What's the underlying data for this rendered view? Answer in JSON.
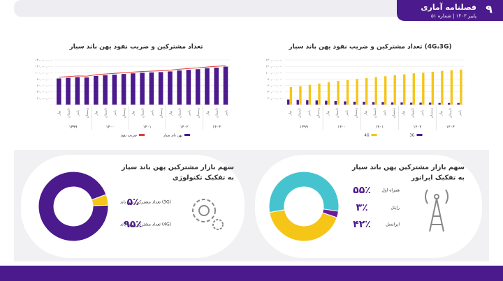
{
  "header": {
    "page_number": "۹",
    "title": "فصلنامه آماری",
    "issue": "پاییز ۱۴۰۳ | شماره ۵۱"
  },
  "chart_data": [
    {
      "type": "bar",
      "title": "تعداد مشترکین و ضریب نفوذ پهن باند سیار",
      "categories": [
        "بهار",
        "تابستان",
        "پاییز",
        "زمستان",
        "بهار",
        "تابستان",
        "پاییز",
        "زمستان",
        "بهار",
        "تابستان",
        "پاییز",
        "زمستان",
        "بهار",
        "تابستان",
        "پاییز",
        "زمستان",
        "بهار",
        "تابستان",
        "پاییز"
      ],
      "years": [
        "۱۳۹۹",
        "۱۴۰۰",
        "۱۴۰۱",
        "۱۴۰۲",
        "۱۴۰۳"
      ],
      "series": [
        {
          "name": "پهن باند سیار",
          "type": "bar",
          "color": "#4b1a8c",
          "values": [
            82000000,
            84000000,
            86000000,
            85000000,
            90000000,
            92000000,
            94000000,
            96000000,
            98000000,
            100000000,
            101000000,
            102000000,
            104000000,
            107000000,
            109000000,
            111000000,
            114000000,
            116000000,
            119000000
          ]
        },
        {
          "name": "ضریب نفوذ",
          "type": "line",
          "color": "#e53935",
          "values": [
            86000000,
            88000000,
            90000000,
            89000000,
            94000000,
            96000000,
            98000000,
            100000000,
            102000000,
            104000000,
            105000000,
            106000000,
            108000000,
            111000000,
            113000000,
            115000000,
            118000000,
            120000000,
            122000000
          ]
        }
      ],
      "ylim": [
        0,
        140000000
      ],
      "yticks": [
        {
          "value": 0,
          "label": "۰"
        },
        {
          "value": 20000000,
          "label": "۲۰,۰۰۰,۰۰۰"
        },
        {
          "value": 40000000,
          "label": "۴۰,۰۰۰,۰۰۰"
        },
        {
          "value": 60000000,
          "label": "۶۰,۰۰۰,۰۰۰"
        },
        {
          "value": 80000000,
          "label": "۸۰,۰۰۰,۰۰۰"
        },
        {
          "value": 100000000,
          "label": "۱۰۰,۰۰۰,۰۰۰"
        },
        {
          "value": 120000000,
          "label": "۱۲۰,۰۰۰,۰۰۰"
        },
        {
          "value": 140000000,
          "label": "۱۴۰,۰۰۰,۰۰۰"
        }
      ],
      "grid": true
    },
    {
      "type": "bar",
      "title": "تعداد مشترکین و ضریب نفوذ پهن باند سیار (4G،3G)",
      "categories": [
        "بهار",
        "تابستان",
        "پاییز",
        "زمستان",
        "بهار",
        "تابستان",
        "پاییز",
        "زمستان",
        "بهار",
        "تابستان",
        "پاییز",
        "زمستان",
        "بهار",
        "تابستان",
        "پاییز",
        "زمستان",
        "بهار",
        "تابستان",
        "پاییز"
      ],
      "years": [
        "۱۳۹۹",
        "۱۴۰۰",
        "۱۴۰۱",
        "۱۴۰۲",
        "۱۴۰۳"
      ],
      "series": [
        {
          "name": "3G",
          "type": "bar",
          "color": "#4b1a8c",
          "values": [
            16000000,
            15000000,
            14000000,
            13000000,
            12000000,
            11000000,
            10000000,
            9000000,
            9000000,
            8000000,
            8000000,
            7000000,
            7000000,
            6000000,
            6000000,
            6000000,
            5000000,
            5000000,
            5000000
          ]
        },
        {
          "name": "4G",
          "type": "bar",
          "color": "#f5c518",
          "values": [
            55000000,
            58000000,
            62000000,
            66000000,
            70000000,
            74000000,
            77000000,
            80000000,
            83000000,
            86000000,
            89000000,
            92000000,
            95000000,
            98000000,
            100000000,
            103000000,
            106000000,
            108000000,
            110000000
          ]
        }
      ],
      "ylim": [
        0,
        140000000
      ],
      "yticks": [
        {
          "value": 0,
          "label": "۰"
        },
        {
          "value": 20000000,
          "label": "۲۰,۰۰۰,۰۰۰"
        },
        {
          "value": 40000000,
          "label": "۴۰,۰۰۰,۰۰۰"
        },
        {
          "value": 60000000,
          "label": "۶۰,۰۰۰,۰۰۰"
        },
        {
          "value": 80000000,
          "label": "۸۰,۰۰۰,۰۰۰"
        },
        {
          "value": 100000000,
          "label": "۱۰۰,۰۰۰,۰۰۰"
        },
        {
          "value": 120000000,
          "label": "۱۲۰,۰۰۰,۰۰۰"
        },
        {
          "value": 140000000,
          "label": "۱۴۰,۰۰۰,۰۰۰"
        }
      ],
      "grid": true
    },
    {
      "type": "pie",
      "title": "سهم بازار مشترکین پهن باند سیار",
      "subtitle": "به تفکیک تکنولوژی",
      "categories": [
        "تعداد مشترکین پهن باند (3G)",
        "تعداد مشترکین پهن باند (4G)"
      ],
      "values": [
        5,
        95
      ],
      "value_labels": [
        "۵٪",
        "۹۵٪"
      ],
      "colors": [
        "#f5c518",
        "#4b1a8c"
      ]
    },
    {
      "type": "pie",
      "title": "سهم بازار مشترکین پهن باند سیار",
      "subtitle": "به تفکیک اپراتور",
      "categories": [
        "همراه اول",
        "رایتل",
        "ایرانسل"
      ],
      "values": [
        55,
        3,
        42
      ],
      "value_labels": [
        "۵۵٪",
        "۳٪",
        "۴۲٪"
      ],
      "colors": [
        "#45c4cf",
        "#6a1b9a",
        "#f5c518"
      ]
    }
  ]
}
